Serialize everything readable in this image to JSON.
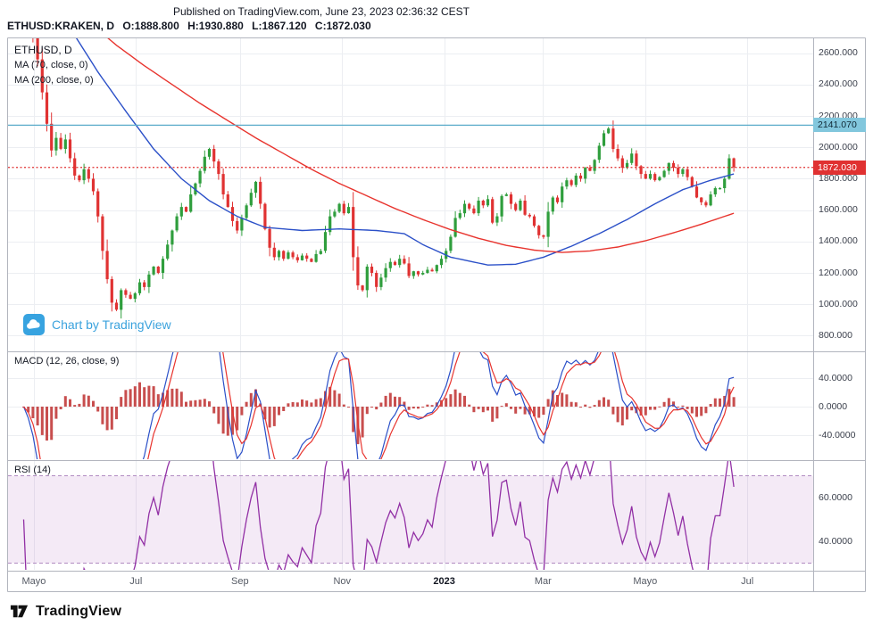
{
  "header": {
    "published_line": "Published on TradingView.com, June 23, 2023 02:36:32 CEST",
    "symbol_title": "ETHUSD:KRAKEN, D",
    "ohlc": {
      "o_label": "O:",
      "o_value": "1888.800",
      "h_label": "H:",
      "h_value": "1930.880",
      "l_label": "L:",
      "l_value": "1867.120",
      "c_label": "C:",
      "c_value": "1872.030"
    }
  },
  "legend": {
    "line1": "ETHUSD, D",
    "line2": "MA (70, close, 0)",
    "line3": "MA (200, close, 0)"
  },
  "panes": {
    "macd_label": "MACD (12, 26, close, 9)",
    "rsi_label": "RSI (14)"
  },
  "watermark": {
    "label": "Chart by TradingView"
  },
  "footer": {
    "brand": "TradingView"
  },
  "price_axis": {
    "ticks": [
      {
        "label": "2600.000",
        "value": 2600
      },
      {
        "label": "2400.000",
        "value": 2400
      },
      {
        "label": "2200.000",
        "value": 2200
      },
      {
        "label": "2000.000",
        "value": 2000
      },
      {
        "label": "1800.000",
        "value": 1800
      },
      {
        "label": "1600.000",
        "value": 1600
      },
      {
        "label": "1400.000",
        "value": 1400
      },
      {
        "label": "1200.000",
        "value": 1200
      },
      {
        "label": "1000.000",
        "value": 1000
      },
      {
        "label": "800.000",
        "value": 800
      }
    ]
  },
  "macd_axis": {
    "ticks": [
      {
        "label": "40.0000",
        "value": 40
      },
      {
        "label": "0.0000",
        "value": 0
      },
      {
        "label": "-40.0000",
        "value": -40
      }
    ]
  },
  "rsi_axis": {
    "ticks": [
      {
        "label": "60.0000",
        "value": 60
      },
      {
        "label": "40.0000",
        "value": 40
      }
    ]
  },
  "time_axis": {
    "ticks": [
      {
        "label": "Mayo",
        "i": 2.2,
        "strong": false
      },
      {
        "label": "Jul",
        "i": 24.2,
        "strong": false
      },
      {
        "label": "Sep",
        "i": 46.6,
        "strong": false
      },
      {
        "label": "Nov",
        "i": 68.6,
        "strong": false
      },
      {
        "label": "2023",
        "i": 90.6,
        "strong": true
      },
      {
        "label": "Mar",
        "i": 111.9,
        "strong": false
      },
      {
        "label": "Mayo",
        "i": 133.9,
        "strong": false
      },
      {
        "label": "Jul",
        "i": 155.9,
        "strong": false
      }
    ]
  },
  "chart_data": {
    "type": "candlestick",
    "symbol": "ETHUSD:KRAKEN",
    "interval": "D",
    "visible_range": [
      "May 2022",
      "Jul 2023"
    ],
    "price_axis_range": [
      700,
      2700
    ],
    "first_open": 2940,
    "closes": [
      2870,
      2790,
      2700,
      2560,
      2350,
      2150,
      1980,
      2060,
      1990,
      2050,
      1930,
      1820,
      1790,
      1860,
      1800,
      1720,
      1560,
      1340,
      1160,
      1010,
      965,
      1090,
      1060,
      1035,
      1070,
      1140,
      1110,
      1190,
      1240,
      1200,
      1290,
      1380,
      1470,
      1560,
      1620,
      1590,
      1700,
      1770,
      1850,
      1940,
      1990,
      1910,
      1830,
      1700,
      1620,
      1530,
      1470,
      1550,
      1630,
      1710,
      1780,
      1640,
      1480,
      1360,
      1300,
      1340,
      1290,
      1330,
      1300,
      1280,
      1310,
      1290,
      1270,
      1320,
      1340,
      1460,
      1560,
      1590,
      1640,
      1580,
      1620,
      1300,
      1120,
      1090,
      1240,
      1200,
      1110,
      1170,
      1230,
      1270,
      1250,
      1290,
      1260,
      1180,
      1210,
      1190,
      1200,
      1220,
      1210,
      1250,
      1290,
      1340,
      1430,
      1550,
      1580,
      1640,
      1610,
      1580,
      1660,
      1630,
      1670,
      1520,
      1560,
      1690,
      1700,
      1640,
      1600,
      1660,
      1570,
      1560,
      1500,
      1440,
      1430,
      1590,
      1680,
      1650,
      1750,
      1790,
      1760,
      1820,
      1800,
      1870,
      1850,
      1920,
      2010,
      2090,
      2120,
      1990,
      1930,
      1870,
      1900,
      1960,
      1880,
      1830,
      1800,
      1830,
      1790,
      1810,
      1850,
      1900,
      1870,
      1830,
      1860,
      1810,
      1750,
      1680,
      1650,
      1630,
      1700,
      1740,
      1740,
      1800,
      1930,
      1872
    ],
    "candle_colors": {
      "up": "#2f9e3d",
      "down": "#e03232"
    },
    "overlays": [
      {
        "name": "MA 70",
        "color": "#2b50c8",
        "anchors": [
          [
            0,
            3080
          ],
          [
            10,
            2760
          ],
          [
            16,
            2480
          ],
          [
            22,
            2230
          ],
          [
            28,
            1990
          ],
          [
            34,
            1800
          ],
          [
            40,
            1660
          ],
          [
            46,
            1560
          ],
          [
            52,
            1490
          ],
          [
            60,
            1470
          ],
          [
            68,
            1480
          ],
          [
            76,
            1470
          ],
          [
            82,
            1450
          ],
          [
            86,
            1380
          ],
          [
            92,
            1300
          ],
          [
            100,
            1250
          ],
          [
            106,
            1255
          ],
          [
            112,
            1300
          ],
          [
            118,
            1370
          ],
          [
            124,
            1450
          ],
          [
            130,
            1540
          ],
          [
            136,
            1640
          ],
          [
            142,
            1730
          ],
          [
            148,
            1790
          ],
          [
            153,
            1830
          ]
        ]
      },
      {
        "name": "MA 200",
        "color": "#e8342e",
        "anchors": [
          [
            0,
            3130
          ],
          [
            8,
            2950
          ],
          [
            14,
            2800
          ],
          [
            20,
            2650
          ],
          [
            26,
            2520
          ],
          [
            32,
            2400
          ],
          [
            38,
            2280
          ],
          [
            44,
            2170
          ],
          [
            50,
            2060
          ],
          [
            56,
            1960
          ],
          [
            62,
            1860
          ],
          [
            68,
            1770
          ],
          [
            74,
            1690
          ],
          [
            80,
            1610
          ],
          [
            86,
            1540
          ],
          [
            92,
            1475
          ],
          [
            98,
            1420
          ],
          [
            104,
            1375
          ],
          [
            110,
            1345
          ],
          [
            116,
            1330
          ],
          [
            122,
            1340
          ],
          [
            128,
            1365
          ],
          [
            134,
            1405
          ],
          [
            140,
            1455
          ],
          [
            146,
            1510
          ],
          [
            151,
            1560
          ],
          [
            153,
            1580
          ]
        ]
      }
    ],
    "indicators": {
      "macd": {
        "label": "MACD (12, 26, close, 9)",
        "colors": {
          "macd": "#2b50c8",
          "signal": "#e8342e",
          "hist": "#c23b3b"
        }
      },
      "rsi": {
        "label": "RSI (14)",
        "band": [
          30,
          70
        ],
        "colors": {
          "line": "#9230a5",
          "band_fill": "rgba(146,48,165,0.10)",
          "band_edge": "#b18cc2"
        }
      }
    },
    "markers": [
      {
        "label": "2141.070",
        "value": 2141.07,
        "bg": "#82c7dd",
        "fg": "#0f2733",
        "line_style": "solid",
        "line_color": "#5aabca"
      },
      {
        "label": "1872.030",
        "value": 1872.03,
        "bg": "#e03131",
        "fg": "#ffffff",
        "line_style": "dotted",
        "line_color": "#e03131"
      }
    ]
  },
  "colors": {
    "grid": "#eceef2",
    "separator": "#b2b5be",
    "axis_text": "#3a3f4b",
    "watermark_blue": "#3aa2dd"
  }
}
